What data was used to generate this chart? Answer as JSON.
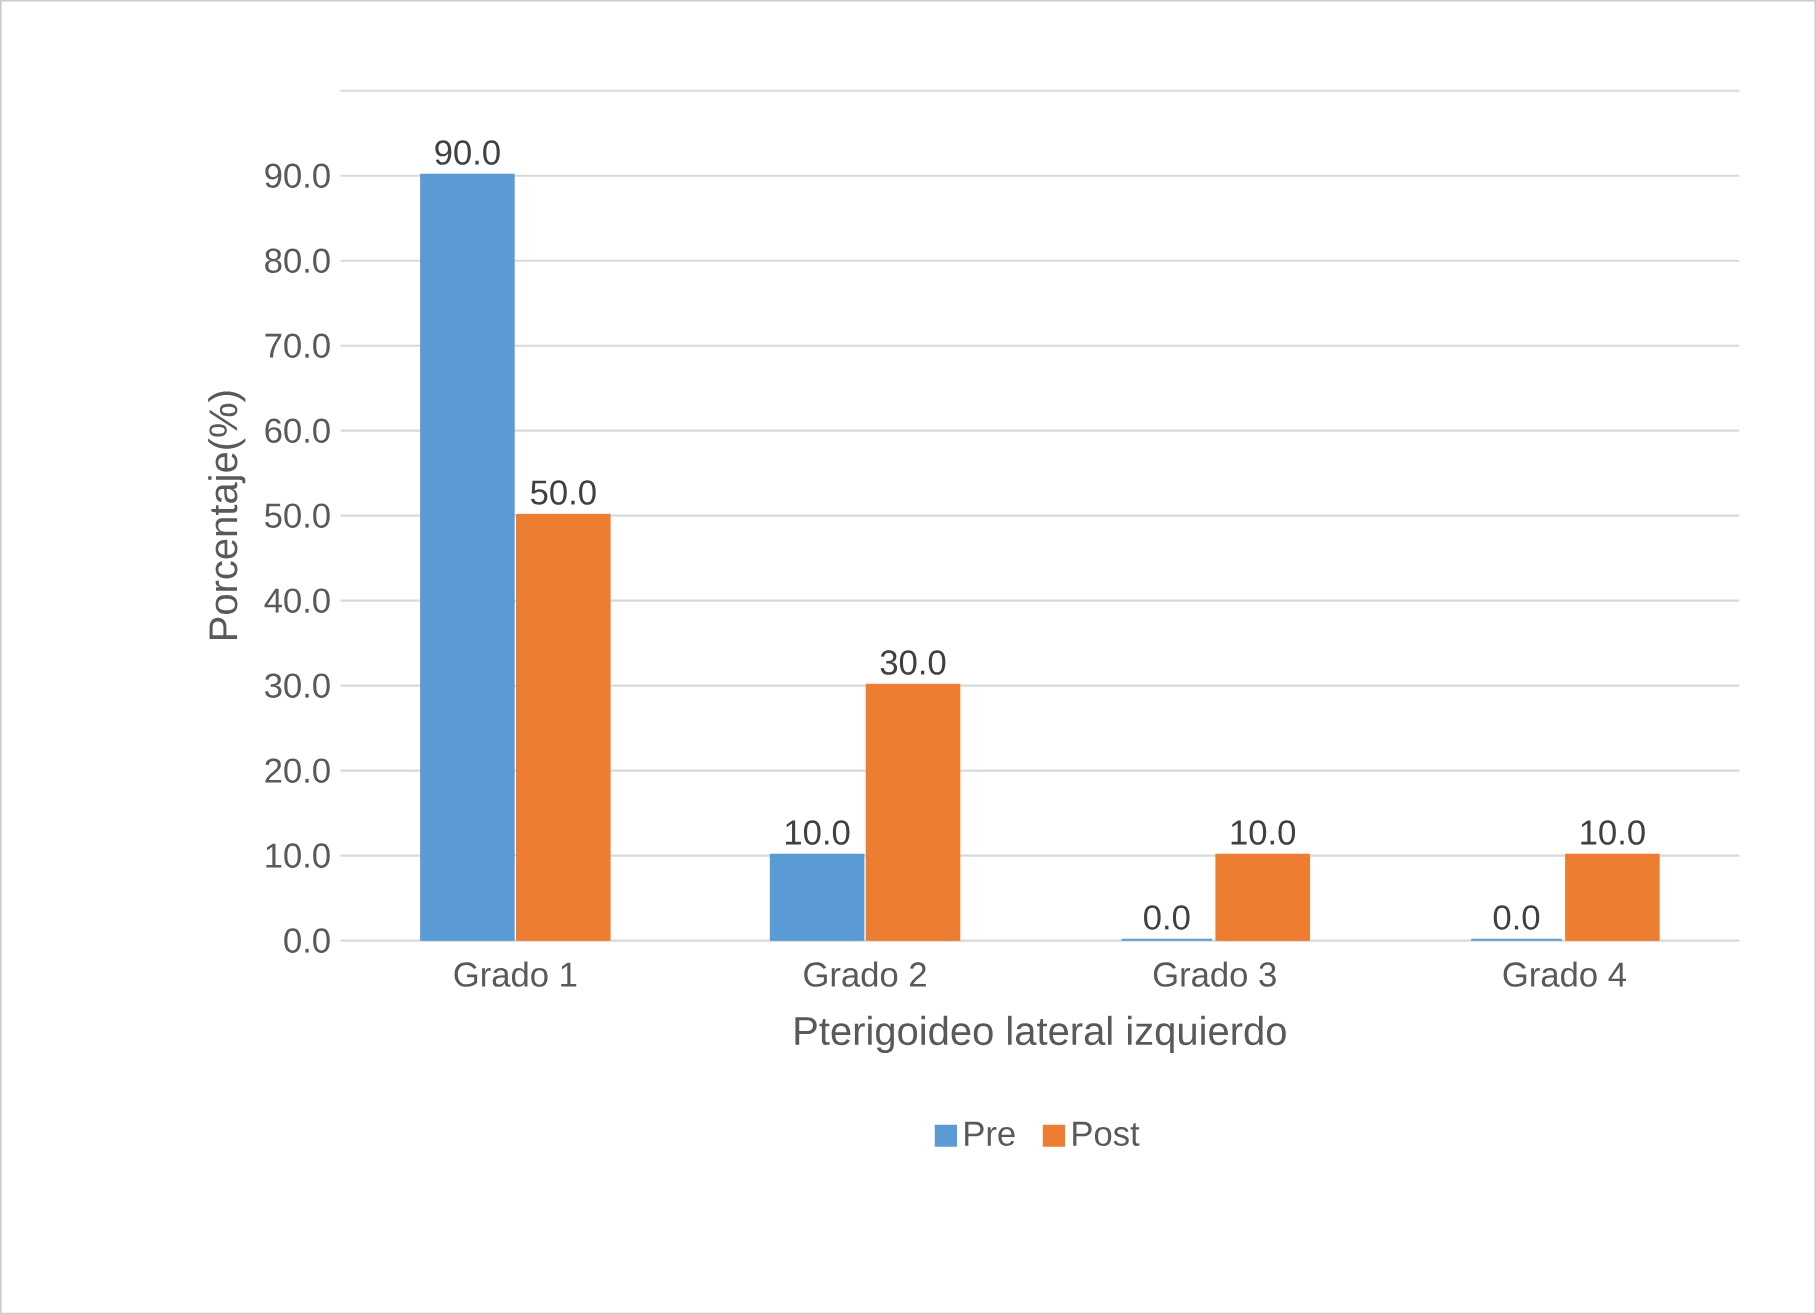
{
  "chart_data": {
    "type": "bar",
    "xlabel": "Pterigoideo lateral izquierdo",
    "ylabel": "Porcentaje(%)",
    "categories": [
      "Grado 1",
      "Grado 2",
      "Grado 3",
      "Grado 4"
    ],
    "series": [
      {
        "name": "Pre",
        "color": "#5b9bd5",
        "values": [
          90,
          10,
          0,
          0
        ],
        "value_labels": [
          "90.0",
          "10.0",
          "0.0",
          "0.0"
        ]
      },
      {
        "name": "Post",
        "color": "#ed7d31",
        "values": [
          50,
          30,
          10,
          10
        ],
        "value_labels": [
          "50.0",
          "30.0",
          "10.0",
          "10.0"
        ]
      }
    ],
    "ylim": [
      0,
      100
    ],
    "yticks": [
      {
        "value": 0,
        "label": "0.0"
      },
      {
        "value": 10,
        "label": "10.0"
      },
      {
        "value": 20,
        "label": "20.0"
      },
      {
        "value": 30,
        "label": "30.0"
      },
      {
        "value": 40,
        "label": "40.0"
      },
      {
        "value": 50,
        "label": "50.0"
      },
      {
        "value": 60,
        "label": "60.0"
      },
      {
        "value": 70,
        "label": "70.0"
      },
      {
        "value": 80,
        "label": "80.0"
      },
      {
        "value": 90,
        "label": "90.0"
      },
      {
        "value": 100,
        "label": null
      }
    ],
    "grid": "y",
    "legend": "bottom"
  }
}
